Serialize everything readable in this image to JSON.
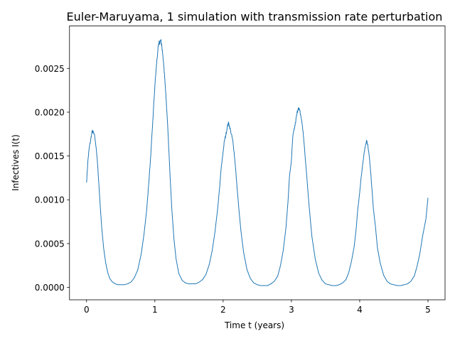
{
  "chart_data": {
    "type": "line",
    "title": "Euler-Maruyama, 1 simulation with transmission rate perturbation",
    "xlabel": "Time t (years)",
    "ylabel": "Infectives I(t)",
    "xlim": [
      -0.25,
      5.25
    ],
    "ylim": [
      -0.000142,
      0.002985
    ],
    "grid": false,
    "legend": "none",
    "line_color": "#1f77b4",
    "x_ticks": [
      0,
      1,
      2,
      3,
      4,
      5
    ],
    "x_tick_labels": [
      "0",
      "1",
      "2",
      "3",
      "4",
      "5"
    ],
    "y_ticks": [
      0.0,
      0.0005,
      0.001,
      0.0015,
      0.002,
      0.0025
    ],
    "y_tick_labels": [
      "0.0000",
      "0.0005",
      "0.0010",
      "0.0015",
      "0.0020",
      "0.0025"
    ],
    "series": [
      {
        "x": [
          0.0,
          0.02,
          0.04,
          0.06,
          0.08,
          0.1,
          0.12,
          0.14,
          0.16,
          0.18,
          0.2,
          0.22,
          0.25,
          0.28,
          0.31,
          0.34,
          0.38,
          0.42,
          0.46,
          0.5,
          0.55,
          0.6,
          0.65,
          0.7,
          0.75,
          0.8,
          0.84,
          0.88,
          0.91,
          0.94,
          0.97,
          1.0,
          1.02,
          1.04,
          1.06,
          1.08,
          1.1,
          1.12,
          1.14,
          1.16,
          1.18,
          1.2,
          1.22,
          1.25,
          1.28,
          1.31,
          1.35,
          1.4,
          1.45,
          1.5,
          1.55,
          1.6,
          1.65,
          1.7,
          1.75,
          1.8,
          1.84,
          1.88,
          1.92,
          1.95,
          1.97,
          2.0,
          2.02,
          2.04,
          2.06,
          2.08,
          2.1,
          2.12,
          2.14,
          2.16,
          2.18,
          2.2,
          2.23,
          2.26,
          2.3,
          2.35,
          2.4,
          2.45,
          2.5,
          2.55,
          2.6,
          2.65,
          2.7,
          2.75,
          2.8,
          2.84,
          2.88,
          2.92,
          2.95,
          2.97,
          3.0,
          3.02,
          3.04,
          3.06,
          3.08,
          3.1,
          3.12,
          3.14,
          3.16,
          3.18,
          3.2,
          3.23,
          3.26,
          3.3,
          3.35,
          3.4,
          3.45,
          3.5,
          3.55,
          3.6,
          3.65,
          3.7,
          3.75,
          3.8,
          3.84,
          3.88,
          3.92,
          3.95,
          3.97,
          4.0,
          4.02,
          4.04,
          4.06,
          4.08,
          4.1,
          4.12,
          4.14,
          4.16,
          4.18,
          4.2,
          4.23,
          4.26,
          4.3,
          4.35,
          4.4,
          4.45,
          4.5,
          4.55,
          4.6,
          4.65,
          4.7,
          4.75,
          4.8,
          4.84,
          4.88,
          4.92,
          4.95,
          4.97,
          5.0
        ],
        "y": [
          0.0012,
          0.00145,
          0.0016,
          0.00168,
          0.00178,
          0.00177,
          0.00172,
          0.0016,
          0.00142,
          0.00118,
          0.00093,
          0.0007,
          0.00045,
          0.00028,
          0.00017,
          0.0001,
          6e-05,
          4e-05,
          3e-05,
          3e-05,
          3e-05,
          4e-05,
          6e-05,
          0.00011,
          0.0002,
          0.00038,
          0.0006,
          0.00088,
          0.00118,
          0.0015,
          0.0019,
          0.0023,
          0.0025,
          0.00268,
          0.00278,
          0.00282,
          0.00278,
          0.00262,
          0.00245,
          0.00222,
          0.00195,
          0.00165,
          0.00132,
          0.00088,
          0.00055,
          0.00033,
          0.00016,
          8e-05,
          5e-05,
          4e-05,
          4e-05,
          4e-05,
          6e-05,
          9e-05,
          0.00015,
          0.00027,
          0.00042,
          0.00063,
          0.0009,
          0.00115,
          0.00135,
          0.00155,
          0.00168,
          0.00174,
          0.00183,
          0.00188,
          0.00182,
          0.00175,
          0.00168,
          0.00155,
          0.00138,
          0.00118,
          0.0009,
          0.00065,
          0.0004,
          0.0002,
          0.0001,
          5e-05,
          3e-05,
          2e-05,
          2e-05,
          2e-05,
          4e-05,
          7e-05,
          0.00013,
          0.00025,
          0.00042,
          0.00068,
          0.00098,
          0.00125,
          0.00145,
          0.00172,
          0.0018,
          0.00188,
          0.00198,
          0.00205,
          0.00202,
          0.00195,
          0.00185,
          0.0017,
          0.0015,
          0.00122,
          0.00092,
          0.00058,
          0.00032,
          0.00016,
          8e-05,
          4e-05,
          3e-05,
          2e-05,
          2e-05,
          3e-05,
          5e-05,
          9e-05,
          0.00017,
          0.0003,
          0.00047,
          0.00068,
          0.00088,
          0.00108,
          0.00125,
          0.00138,
          0.0015,
          0.0016,
          0.00168,
          0.00162,
          0.0015,
          0.00132,
          0.00112,
          0.0009,
          0.0007,
          0.00045,
          0.00028,
          0.00014,
          7e-05,
          4e-05,
          3e-05,
          2e-05,
          2e-05,
          3e-05,
          4e-05,
          7e-05,
          0.00013,
          0.00024,
          0.00038,
          0.00058,
          0.0007,
          0.00078,
          0.00102
        ]
      }
    ]
  }
}
